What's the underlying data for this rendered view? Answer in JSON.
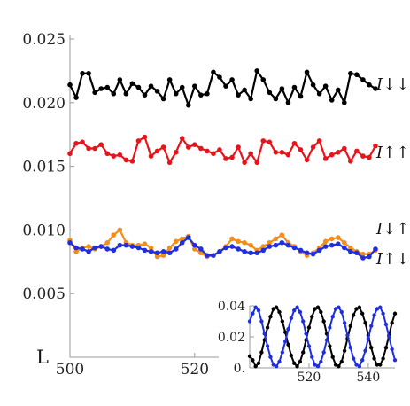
{
  "chart_data": [
    {
      "type": "line",
      "title": "",
      "xlabel": "L",
      "ylabel": "",
      "xlim": [
        500,
        549
      ],
      "ylim": [
        0,
        0.025
      ],
      "xticks": [
        "500",
        "520",
        "540"
      ],
      "yticks": [
        "0.005",
        "0.010",
        "0.015",
        "0.020",
        "0.025"
      ],
      "grid": false,
      "x": [
        500,
        501,
        502,
        503,
        504,
        505,
        506,
        507,
        508,
        509,
        510,
        511,
        512,
        513,
        514,
        515,
        516,
        517,
        518,
        519,
        520,
        521,
        522,
        523,
        524,
        525,
        526,
        527,
        528,
        529,
        530,
        531,
        532,
        533,
        534,
        535,
        536,
        537,
        538,
        539,
        540,
        541,
        542,
        543,
        544,
        545,
        546,
        547,
        548,
        549
      ],
      "series": [
        {
          "name": "I↓↓",
          "color": "#000000",
          "values": [
            0.0214,
            0.0204,
            0.0223,
            0.0223,
            0.0208,
            0.0211,
            0.0212,
            0.0207,
            0.0218,
            0.0207,
            0.0215,
            0.0212,
            0.0206,
            0.0213,
            0.0209,
            0.0203,
            0.0218,
            0.0207,
            0.0212,
            0.0198,
            0.0213,
            0.0206,
            0.0207,
            0.0224,
            0.022,
            0.0213,
            0.0218,
            0.0206,
            0.021,
            0.0203,
            0.0225,
            0.0218,
            0.0208,
            0.0203,
            0.0211,
            0.02,
            0.0212,
            0.0205,
            0.0224,
            0.0214,
            0.0207,
            0.0213,
            0.0202,
            0.021,
            0.02,
            0.0223,
            0.0222,
            0.0218,
            0.0214,
            0.0211
          ]
        },
        {
          "name": "I↑↑",
          "color": "#e8141b",
          "values": [
            0.016,
            0.0168,
            0.0169,
            0.0164,
            0.0164,
            0.0167,
            0.016,
            0.0158,
            0.0159,
            0.0155,
            0.0154,
            0.017,
            0.0173,
            0.0158,
            0.0162,
            0.0165,
            0.0153,
            0.0161,
            0.0172,
            0.0165,
            0.0167,
            0.0164,
            0.0162,
            0.016,
            0.0163,
            0.0156,
            0.0157,
            0.0165,
            0.0153,
            0.016,
            0.0153,
            0.017,
            0.0169,
            0.0161,
            0.0161,
            0.0159,
            0.0168,
            0.0163,
            0.0155,
            0.0165,
            0.017,
            0.0156,
            0.0159,
            0.0161,
            0.0164,
            0.0154,
            0.0162,
            0.0158,
            0.0157,
            0.0166
          ]
        },
        {
          "name": "I↓↑",
          "color": "#f28e1c",
          "values": [
            0.0092,
            0.0083,
            0.0086,
            0.0087,
            0.0085,
            0.0087,
            0.009,
            0.0096,
            0.01,
            0.009,
            0.0088,
            0.0088,
            0.0089,
            0.0086,
            0.0079,
            0.008,
            0.0086,
            0.0091,
            0.0093,
            0.0095,
            0.0085,
            0.0082,
            0.0079,
            0.008,
            0.0083,
            0.0087,
            0.0093,
            0.0091,
            0.009,
            0.0088,
            0.0084,
            0.0087,
            0.009,
            0.0093,
            0.0096,
            0.009,
            0.0087,
            0.0083,
            0.008,
            0.0082,
            0.0086,
            0.0091,
            0.0093,
            0.0094,
            0.009,
            0.0086,
            0.0083,
            0.0081,
            0.0081,
            0.0084
          ]
        },
        {
          "name": "I↑↓",
          "color": "#1f2fe0",
          "values": [
            0.009,
            0.0086,
            0.0085,
            0.0083,
            0.0086,
            0.0087,
            0.0085,
            0.0084,
            0.0088,
            0.0088,
            0.0087,
            0.0086,
            0.0084,
            0.0083,
            0.0082,
            0.0083,
            0.0082,
            0.0085,
            0.009,
            0.0094,
            0.0088,
            0.0085,
            0.008,
            0.008,
            0.0083,
            0.0086,
            0.0087,
            0.0085,
            0.0083,
            0.0082,
            0.0082,
            0.0084,
            0.0087,
            0.0088,
            0.009,
            0.0088,
            0.0086,
            0.0084,
            0.0082,
            0.0081,
            0.0084,
            0.0087,
            0.0088,
            0.0089,
            0.0086,
            0.0083,
            0.0082,
            0.0078,
            0.0079,
            0.0085
          ]
        }
      ]
    },
    {
      "type": "line",
      "title": "",
      "xlabel": "",
      "ylabel": "",
      "xlim": [
        500,
        549
      ],
      "ylim": [
        0,
        0.04
      ],
      "xticks": [
        "520",
        "540"
      ],
      "yticks": [
        "0.",
        "0.02",
        "0.04"
      ],
      "grid": false,
      "x": [
        500,
        501,
        502,
        503,
        504,
        505,
        506,
        507,
        508,
        509,
        510,
        511,
        512,
        513,
        514,
        515,
        516,
        517,
        518,
        519,
        520,
        521,
        522,
        523,
        524,
        525,
        526,
        527,
        528,
        529,
        530,
        531,
        532,
        533,
        534,
        535,
        536,
        537,
        538,
        539,
        540,
        541,
        542,
        543,
        544,
        545,
        546,
        547,
        548,
        549
      ],
      "series": [
        {
          "color": "#000000",
          "values": [
            0.0075,
            0.005,
            0.001,
            0.003,
            0.01,
            0.018,
            0.026,
            0.033,
            0.038,
            0.039,
            0.036,
            0.03,
            0.023,
            0.015,
            0.008,
            0.003,
            0.001,
            0.004,
            0.01,
            0.018,
            0.026,
            0.033,
            0.038,
            0.039,
            0.036,
            0.03,
            0.022,
            0.014,
            0.007,
            0.002,
            0.001,
            0.004,
            0.011,
            0.019,
            0.027,
            0.034,
            0.038,
            0.039,
            0.035,
            0.029,
            0.021,
            0.013,
            0.006,
            0.002,
            0.002,
            0.006,
            0.013,
            0.021,
            0.029,
            0.035
          ]
        },
        {
          "color": "#1f2fe0",
          "values": [
            0.03,
            0.035,
            0.039,
            0.037,
            0.03,
            0.022,
            0.014,
            0.007,
            0.002,
            0.001,
            0.004,
            0.01,
            0.017,
            0.025,
            0.032,
            0.037,
            0.039,
            0.036,
            0.03,
            0.022,
            0.014,
            0.007,
            0.002,
            0.001,
            0.004,
            0.01,
            0.018,
            0.026,
            0.033,
            0.038,
            0.039,
            0.036,
            0.029,
            0.021,
            0.013,
            0.006,
            0.002,
            0.001,
            0.005,
            0.011,
            0.019,
            0.027,
            0.034,
            0.038,
            0.039,
            0.035,
            0.028,
            0.02,
            0.012,
            0.005
          ]
        }
      ]
    }
  ]
}
